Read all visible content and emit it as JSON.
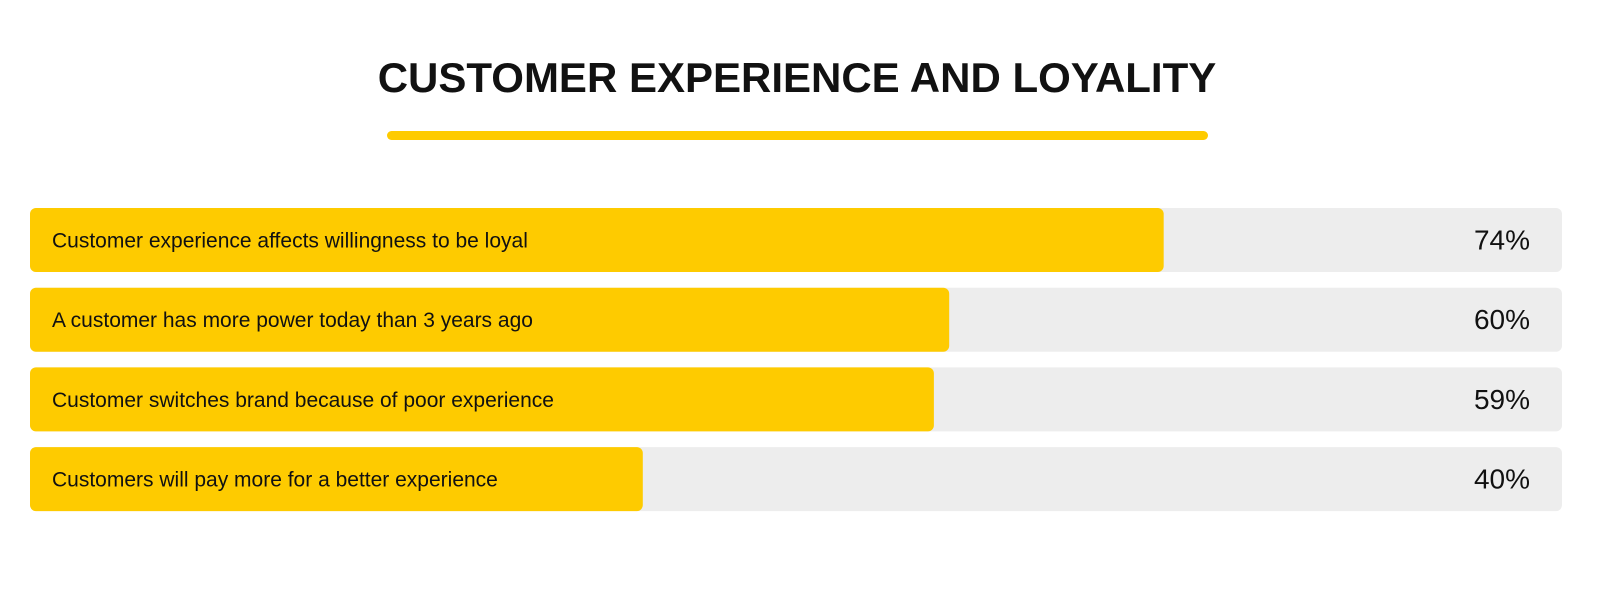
{
  "chart_data": {
    "type": "bar",
    "orientation": "horizontal",
    "title": "CUSTOMER EXPERIENCE AND LOYALITY",
    "categories": [
      "Customer experience affects willingness to be loyal",
      "A customer has more power today than 3 years ago",
      "Customer switches brand because of poor experience",
      "Customers will pay more for a better experience"
    ],
    "values": [
      74,
      60,
      59,
      40
    ],
    "value_labels": [
      "74%",
      "60%",
      "59%",
      "40%"
    ],
    "color": "#fecb00",
    "track_color": "#ededed",
    "xlim": [
      0,
      100
    ]
  }
}
